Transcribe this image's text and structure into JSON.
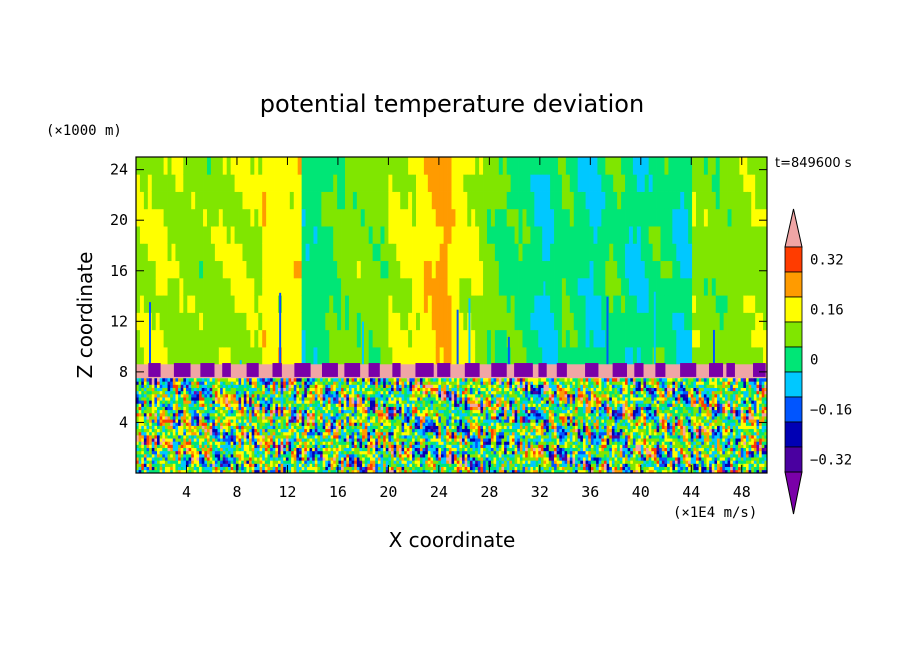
{
  "chart_data": {
    "type": "heatmap",
    "title": "potential temperature deviation",
    "xlabel": "X coordinate",
    "ylabel": "Z coordinate",
    "x_unit": "(×1E4 m/s)",
    "y_unit": "(×1000 m)",
    "time_label": "t=849600 s",
    "xlim": [
      0,
      50
    ],
    "ylim": [
      0,
      25
    ],
    "x_ticks": [
      4,
      8,
      12,
      16,
      20,
      24,
      28,
      32,
      36,
      40,
      44,
      48
    ],
    "y_ticks": [
      4,
      8,
      12,
      16,
      20,
      24
    ],
    "colorbar": {
      "levels": [
        -0.4,
        -0.32,
        -0.24,
        -0.16,
        -0.08,
        0,
        0.08,
        0.16,
        0.24,
        0.32,
        0.4
      ],
      "labels": [
        "0.32",
        "0.16",
        "0",
        "−0.16",
        "−0.32"
      ],
      "label_values": [
        0.32,
        0.16,
        0,
        -0.16,
        -0.32
      ],
      "colors": [
        "#7a00a8",
        "#4a00a0",
        "#0000b4",
        "#0055ff",
        "#00c8ff",
        "#00e676",
        "#80e600",
        "#ffff00",
        "#ff9b00",
        "#ff3c00",
        "#f0a5a5"
      ],
      "extend": "both"
    },
    "regions": [
      {
        "z": [
          0,
          7.5
        ],
        "pattern": "turbulent mixed",
        "dominant": [
          -0.32,
          0.32
        ]
      },
      {
        "z": [
          7.5,
          8.6
        ],
        "pattern": "inversion band",
        "value": 0.4
      },
      {
        "z": [
          8.6,
          25
        ],
        "pattern": "smooth vertical streaks",
        "dominant": [
          -0.16,
          0.16
        ]
      }
    ],
    "grid": false,
    "legend": "right"
  }
}
